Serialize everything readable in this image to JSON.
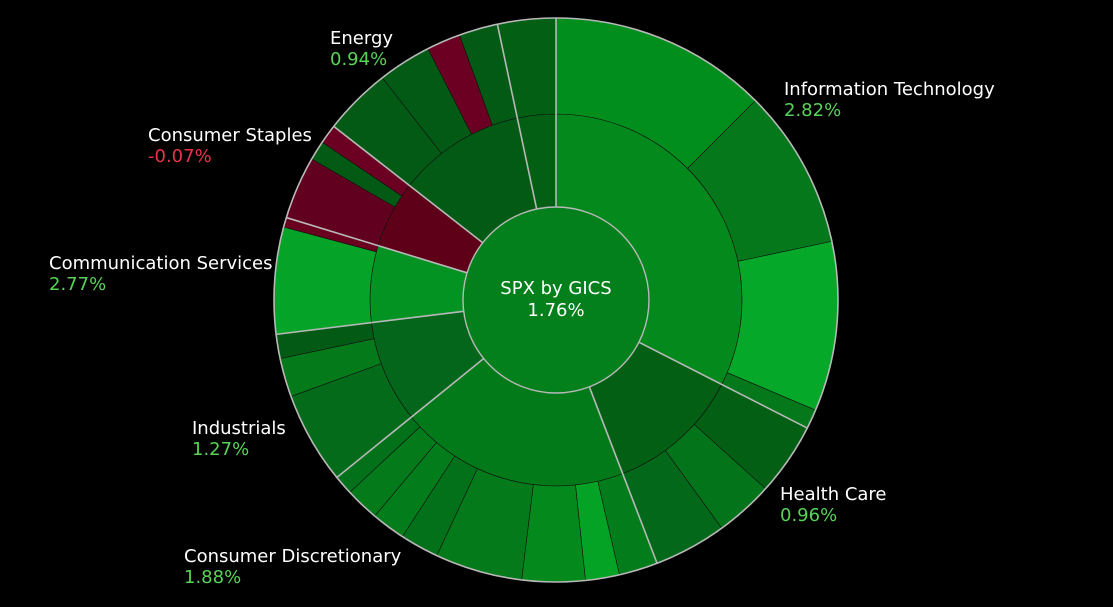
{
  "chart_data": {
    "type": "sunburst",
    "title": "SPX by GICS",
    "total_change_label": "1.76%",
    "colors": {
      "positive_label": "#57d457",
      "negative_label": "#e8334a",
      "name_label": "#ffffff",
      "outline": "#b8b8b8",
      "background": "#000000"
    },
    "sectors": [
      {
        "name": "Information Technology",
        "change_label": "2.82%",
        "sign": "positive",
        "inner_color": "#03891c",
        "start": 0,
        "end": 117,
        "outer": [
          {
            "start": 0,
            "end": 45,
            "color": "#028e1d"
          },
          {
            "start": 45,
            "end": 78,
            "color": "#04781a"
          },
          {
            "start": 78,
            "end": 113,
            "color": "#05a828"
          },
          {
            "start": 113,
            "end": 117,
            "color": "#04781a"
          }
        ]
      },
      {
        "name": "Health Care",
        "change_label": "0.96%",
        "sign": "positive",
        "inner_color": "#035f14",
        "start": 117,
        "end": 159,
        "outer": [
          {
            "start": 117,
            "end": 132,
            "color": "#035f14"
          },
          {
            "start": 132,
            "end": 144,
            "color": "#04741a"
          },
          {
            "start": 144,
            "end": 159,
            "color": "#04681a"
          }
        ]
      },
      {
        "name": "Consumer Discretionary",
        "change_label": "1.88%",
        "sign": "positive",
        "inner_color": "#037a1a",
        "start": 159,
        "end": 231,
        "outer": [
          {
            "start": 159,
            "end": 167,
            "color": "#037d1b"
          },
          {
            "start": 167,
            "end": 174,
            "color": "#05a325"
          },
          {
            "start": 174,
            "end": 187,
            "color": "#03891c"
          },
          {
            "start": 187,
            "end": 205,
            "color": "#047a1b"
          },
          {
            "start": 205,
            "end": 213,
            "color": "#03711a"
          },
          {
            "start": 213,
            "end": 220,
            "color": "#037d1b"
          },
          {
            "start": 220,
            "end": 227,
            "color": "#047a1b"
          },
          {
            "start": 227,
            "end": 231,
            "color": "#03701a"
          }
        ]
      },
      {
        "name": "Industrials",
        "change_label": "1.27%",
        "sign": "positive",
        "inner_color": "#03661a",
        "start": 231,
        "end": 263,
        "outer": [
          {
            "start": 231,
            "end": 250,
            "color": "#036b1a"
          },
          {
            "start": 250,
            "end": 258,
            "color": "#047a1b"
          },
          {
            "start": 258,
            "end": 263,
            "color": "#035a14"
          }
        ]
      },
      {
        "name": "Communication Services",
        "change_label": "2.77%",
        "sign": "positive",
        "inner_color": "#039323",
        "start": 263,
        "end": 287,
        "outer": [
          {
            "start": 263,
            "end": 285,
            "color": "#05a428"
          },
          {
            "start": 285,
            "end": 287,
            "color": "#6a0020"
          }
        ]
      },
      {
        "name": "Consumer Staples",
        "change_label": "-0.07%",
        "sign": "negative",
        "inner_color": "#5e0018",
        "start": 287,
        "end": 308,
        "outer": [
          {
            "start": 287,
            "end": 300,
            "color": "#620020"
          },
          {
            "start": 300,
            "end": 304,
            "color": "#035a14"
          },
          {
            "start": 304,
            "end": 308,
            "color": "#6b0022"
          }
        ]
      },
      {
        "name": "Energy",
        "change_label": "0.94%",
        "sign": "positive",
        "inner_color": "#035a14",
        "start": 308,
        "end": 348,
        "outer": [
          {
            "start": 308,
            "end": 322,
            "color": "#035a14"
          },
          {
            "start": 322,
            "end": 333,
            "color": "#035a14"
          },
          {
            "start": 333,
            "end": 340,
            "color": "#6b0022"
          },
          {
            "start": 340,
            "end": 348,
            "color": "#035a14"
          }
        ]
      },
      {
        "name": "",
        "change_label": "",
        "sign": "positive",
        "inner_color": "#035f14",
        "start": 348,
        "end": 360,
        "outer": [
          {
            "start": 348,
            "end": 360,
            "color": "#035f14"
          }
        ]
      }
    ]
  }
}
